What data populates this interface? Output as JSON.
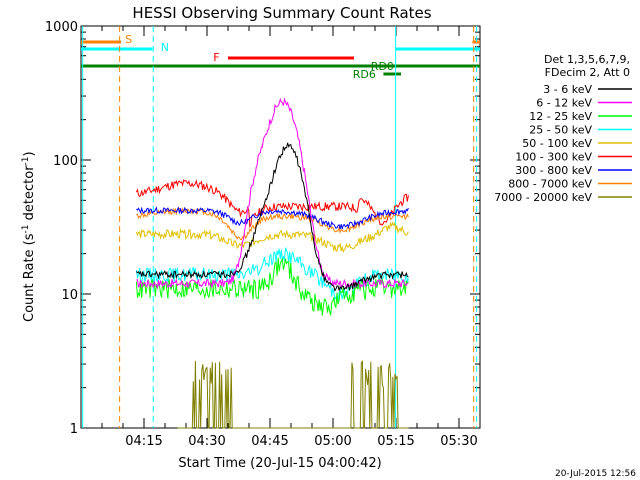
{
  "chart_data": {
    "type": "line",
    "title": "HESSI Observing Summary Count Rates",
    "xlabel": "Start Time (20-Jul-15 04:00:42)",
    "ylabel_main": "Count Rate (s",
    "ylabel_sup": "-1",
    "ylabel_rest": " detector",
    "ylabel_sup2": "-1",
    "ylabel_end": ")",
    "y_scale": "log",
    "ylim": [
      1,
      1000
    ],
    "xlim_minutes": [
      0,
      95
    ],
    "y_ticks": [
      "1",
      "10",
      "100",
      "1000"
    ],
    "x_ticks": [
      {
        "label": "04:15",
        "min": 15
      },
      {
        "label": "04:30",
        "min": 30
      },
      {
        "label": "04:45",
        "min": 45
      },
      {
        "label": "05:00",
        "min": 60
      },
      {
        "label": "05:15",
        "min": 75
      },
      {
        "label": "05:30",
        "min": 90
      }
    ],
    "legend_header": [
      "Det 1,3,5,6,7,9,",
      "FDecim 2, Att 0"
    ],
    "legend_position": "right",
    "series": [
      {
        "name": "3 - 6 keV",
        "color": "#000000"
      },
      {
        "name": "6 - 12 keV",
        "color": "#ff00ff"
      },
      {
        "name": "12 - 25 keV",
        "color": "#00ff00"
      },
      {
        "name": "25 - 50 keV",
        "color": "#00ffff"
      },
      {
        "name": "50 - 100 keV",
        "color": "#e0c000"
      },
      {
        "name": "100 - 300 keV",
        "color": "#ff0000"
      },
      {
        "name": "300 - 800 keV",
        "color": "#0000ff"
      },
      {
        "name": "800 - 7000 keV",
        "color": "#ff8000"
      },
      {
        "name": "7000 - 20000 keV",
        "color": "#808000"
      }
    ],
    "flags": [
      {
        "label": "S",
        "color": "#ff8000"
      },
      {
        "label": "N",
        "color": "#00ffff"
      },
      {
        "label": "F",
        "color": "#ff0000"
      },
      {
        "label": "RD0",
        "color": "#008000"
      },
      {
        "label": "RD6",
        "color": "#008000"
      }
    ],
    "timestamp": "20-Jul-2015 12:56"
  }
}
